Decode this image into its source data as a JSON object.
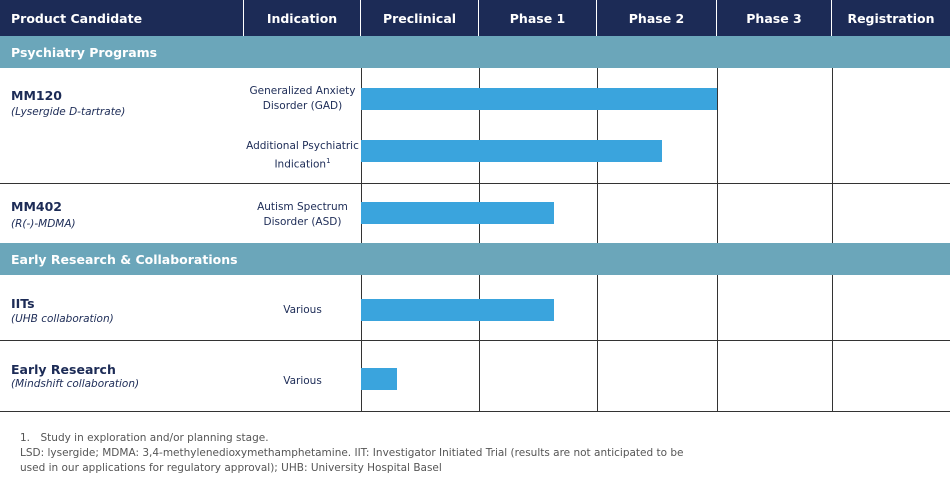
{
  "header": [
    "Product Candidate",
    "Indication",
    "Preclinical",
    "Phase 1",
    "Phase 2",
    "Phase 3",
    "Registration"
  ],
  "sections": [
    {
      "title": "Psychiatry Programs",
      "programs": [
        {
          "name": "MM120",
          "subtitle": "(Lysergide D-tartrate)",
          "indications": [
            {
              "lines": [
                "Generalized Anxiety",
                "Disorder (GAD)"
              ]
            },
            {
              "lines": [
                "Additional Psychiatric",
                "Indication"
              ],
              "note": "1"
            }
          ]
        },
        {
          "name": "MM402",
          "subtitle": "(R(-)-MDMA)",
          "indications": [
            {
              "lines": [
                "Autism Spectrum",
                "Disorder (ASD)"
              ]
            }
          ]
        }
      ]
    },
    {
      "title": "Early Research & Collaborations",
      "programs": [
        {
          "name": "IITs",
          "subtitle": "(UHB collaboration)",
          "indications": [
            {
              "lines": [
                "Various"
              ]
            }
          ]
        },
        {
          "name": "Early Research",
          "subtitle": "(Mindshift collaboration)",
          "indications": [
            {
              "lines": [
                "Various"
              ]
            }
          ]
        }
      ]
    }
  ],
  "footnotes": [
    "1. Study in exploration and/or planning stage.",
    "LSD: lysergide; MDMA: 3,4-methylenedioxymethamphetamine. IIT: Investigator Initiated Trial (results are not anticipated to be",
    "used in our applications for regulatory approval); UHB: University Hospital Basel"
  ]
}
